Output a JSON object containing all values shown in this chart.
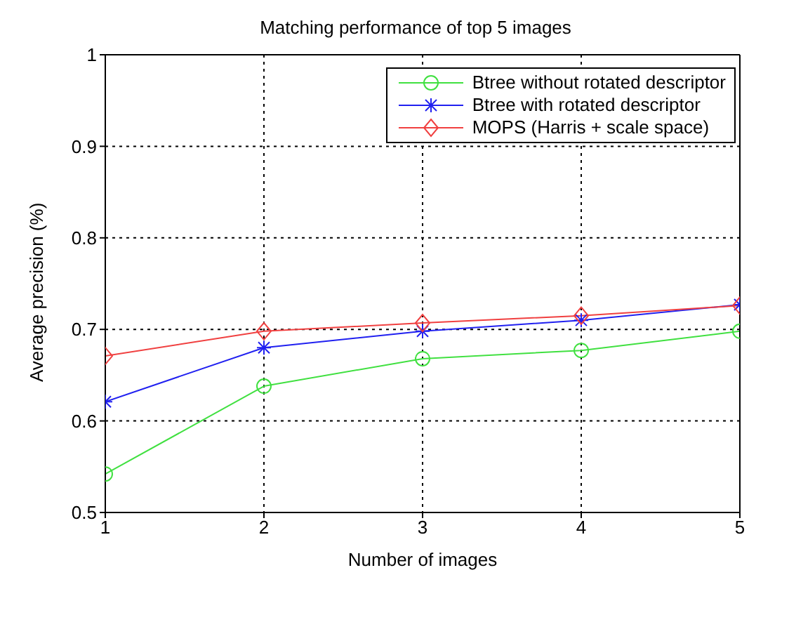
{
  "chart_data": {
    "type": "line",
    "title": "Matching performance of top 5 images",
    "xlabel": "Number of images",
    "ylabel": "Average precision (%)",
    "x": [
      1,
      2,
      3,
      4,
      5
    ],
    "xlim": [
      1,
      5
    ],
    "xticks": [
      1,
      2,
      3,
      4,
      5
    ],
    "ylim": [
      0.5,
      1
    ],
    "yticks": [
      0.5,
      0.6,
      0.7,
      0.8,
      0.9,
      1
    ],
    "grid": true,
    "legend": "top right",
    "series": [
      {
        "name": "Btree without rotated descriptor",
        "color": "#40e040",
        "marker": "circle",
        "values": [
          0.542,
          0.638,
          0.668,
          0.677,
          0.698
        ]
      },
      {
        "name": "Btree with rotated descriptor",
        "color": "#2020f0",
        "marker": "cross",
        "values": [
          0.621,
          0.68,
          0.698,
          0.71,
          0.727
        ]
      },
      {
        "name": "MOPS (Harris + scale space)",
        "color": "#f04040",
        "marker": "diamond",
        "values": [
          0.671,
          0.698,
          0.707,
          0.715,
          0.726
        ]
      }
    ]
  }
}
